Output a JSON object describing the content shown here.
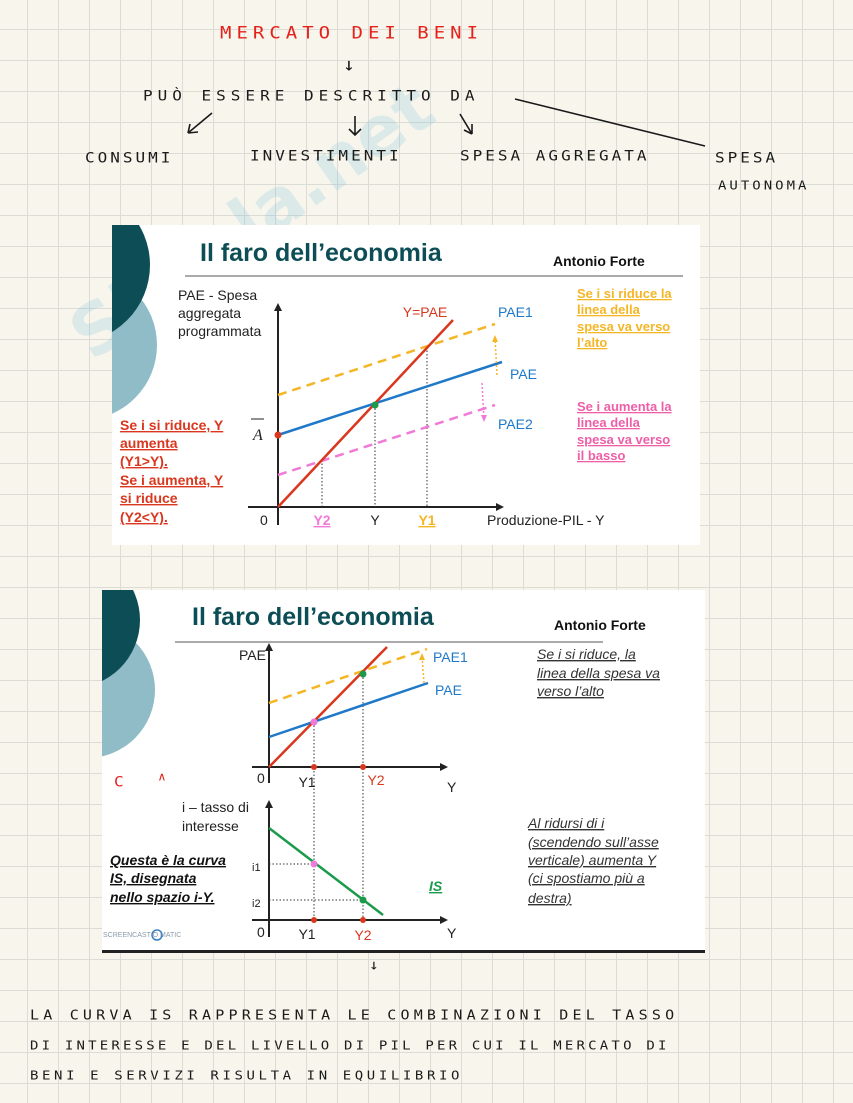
{
  "notes": {
    "title": "MERCATO DEI BENI",
    "line1": "PUÒ ESSERE DESCRITTO DA",
    "items": [
      "CONSUMI",
      "INVESTIMENTI",
      "SPESA AGGREGATA",
      "SPESA",
      "AUTONOMA"
    ],
    "margin_marks": [
      "C",
      "∧"
    ],
    "summary": [
      "LA CURVA IS RAPPRESENTA LE COMBINAZIONI DEL TASSO",
      "DI INTERESSE E DEL LIVELLO DI PIL PER CUI IL MERCATO DI",
      "BENI E SERVIZI RISULTA IN EQUILIBRIO"
    ],
    "arrow_icon": "arrow-down"
  },
  "watermark": "Skuola.net",
  "slide1": {
    "title": "Il faro dell’economia",
    "author": "Antonio Forte",
    "y_label": [
      "PAE - Spesa",
      "aggregata",
      "programmata"
    ],
    "x_label": "Produzione-PIL - Y",
    "intercept": "A",
    "line_labels": {
      "y_eq_pae": "Y=PAE",
      "pae1": "PAE1",
      "pae": "PAE",
      "pae2": "PAE2"
    },
    "x_ticks": {
      "origin": "0",
      "y2": "Y2",
      "y": "Y",
      "y1": "Y1"
    },
    "note_up": [
      "Se i si riduce la",
      "linea della",
      "spesa va verso",
      "l’alto"
    ],
    "note_down": [
      "Se i aumenta la",
      "linea della",
      "spesa va verso",
      "il basso"
    ],
    "note_left": [
      "Se i si riduce, Y",
      "aumenta",
      "(Y1>Y).",
      "Se i aumenta, Y",
      "si riduce",
      "(Y2<Y)."
    ],
    "colors": {
      "title": "#0d4d56",
      "red_line": "#d9371e",
      "blue_line": "#1f78c8",
      "yellow": "#f5b625",
      "pink": "#f07ad8",
      "green": "#1a9a4a"
    }
  },
  "slide2": {
    "title": "Il faro dell’economia",
    "author": "Antonio Forte",
    "top_y_label": "PAE",
    "line_labels": {
      "pae1": "PAE1",
      "pae": "PAE"
    },
    "top_x_ticks": {
      "origin": "0",
      "y1": "Y1",
      "y2": "Y2",
      "y": "Y"
    },
    "note_up": [
      "Se i si riduce, la",
      "linea della spesa va",
      "verso l’alto"
    ],
    "bottom_y_label": [
      "i – tasso di",
      "interesse"
    ],
    "i_ticks": [
      "i1",
      "i2"
    ],
    "is_label": "IS",
    "bottom_x_ticks": {
      "origin": "0",
      "y1": "Y1",
      "y2": "Y2",
      "y": "Y"
    },
    "note_right": [
      "Al ridursi di i",
      "(scendendo sull’asse",
      "verticale) aumenta Y",
      "(ci spostiamo più a",
      "destra)"
    ],
    "note_left": [
      "Questa è la curva",
      "IS, disegnata",
      "nello spazio i-Y."
    ],
    "logo": "SCREENCAST O MATIC"
  }
}
